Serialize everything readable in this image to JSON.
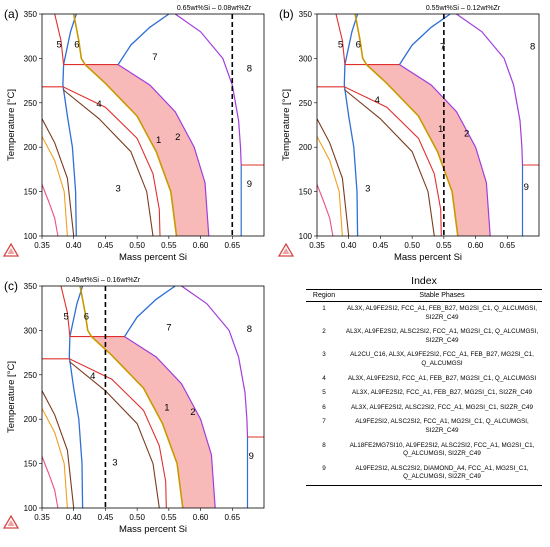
{
  "chart_data": [
    {
      "type": "line",
      "panel": "(a)",
      "annotation": "0.65wt%Si – 0.08wt%Zr",
      "xlabel": "Mass percent Si",
      "ylabel": "Temperature [°C]",
      "xlim": [
        0.35,
        0.7
      ],
      "ylim": [
        100,
        350
      ],
      "xticks": [
        "0.35",
        "0.40",
        "0.45",
        "0.50",
        "0.55",
        "0.60",
        "0.65"
      ],
      "yticks": [
        "100",
        "150",
        "200",
        "250",
        "300",
        "350"
      ],
      "marker_x": 0.65,
      "highlight_region": "2",
      "region_labels": [
        "1",
        "2",
        "3",
        "4",
        "5",
        "6",
        "7",
        "8",
        "9"
      ]
    },
    {
      "type": "line",
      "panel": "(b)",
      "annotation": "0.55wt%Si – 0.12wt%Zr",
      "xlabel": "Mass percent Si",
      "ylabel": "Temperature [°C]",
      "xlim": [
        0.35,
        0.7
      ],
      "ylim": [
        100,
        350
      ],
      "xticks": [
        "0.35",
        "0.40",
        "0.45",
        "0.50",
        "0.55",
        "0.60",
        "0.65"
      ],
      "yticks": [
        "100",
        "150",
        "200",
        "250",
        "300",
        "350"
      ],
      "marker_x": 0.55,
      "highlight_region": "2",
      "region_labels": [
        "1",
        "2",
        "3",
        "4",
        "5",
        "6",
        "7",
        "8",
        "9"
      ]
    },
    {
      "type": "line",
      "panel": "(c)",
      "annotation": "0.45wt%Si – 0.16wt%Zr",
      "xlabel": "Mass percent Si",
      "ylabel": "Temperature [°C]",
      "xlim": [
        0.35,
        0.7
      ],
      "ylim": [
        100,
        350
      ],
      "xticks": [
        "0.35",
        "0.40",
        "0.45",
        "0.50",
        "0.55",
        "0.60",
        "0.65"
      ],
      "yticks": [
        "100",
        "150",
        "200",
        "250",
        "300",
        "350"
      ],
      "marker_x": 0.45,
      "highlight_region": "2",
      "region_labels": [
        "1",
        "2",
        "3",
        "4",
        "5",
        "6",
        "7",
        "8",
        "9"
      ]
    }
  ],
  "colors": {
    "highlight_fill": "#f8b9b9",
    "red": "#e0302e",
    "blue": "#2f6fd6",
    "purple": "#a23cdc",
    "gold": "#c99a00",
    "brown": "#7a3b1e",
    "pink": "#e8508a",
    "orange": "#f0a020",
    "logo": "#d64545"
  },
  "index": {
    "title": "Index",
    "col_region": "Region",
    "col_phases": "Stable Phases",
    "rows": [
      {
        "region": "1",
        "phases": "AL3X, AL9FE2SI2, FCC_A1, FEB_B27, MG2SI_C1, Q_ALCUMGSI, SI2ZR_C49"
      },
      {
        "region": "2",
        "phases": "AL3X, AL9FE2SI2, ALSC2SI2, FCC_A1, MG2SI_C1, Q_ALCUMGSI, SI2ZR_C49"
      },
      {
        "region": "3",
        "phases": "AL2CU_C16, AL3X, AL9FE2SI2, FCC_A1, FEB_B27, MG2SI_C1, Q_ALCUMGSI"
      },
      {
        "region": "4",
        "phases": "AL3X, AL9FE2SI2, FCC_A1, FEB_B27, MG2SI_C1, Q_ALCUMGSI"
      },
      {
        "region": "5",
        "phases": "AL3X, AL9FE2SI2, FCC_A1, FEB_B27, MG2SI_C1, SI2ZR_C49"
      },
      {
        "region": "6",
        "phases": "AL3X, AL9FE2SI2, ALSC2SI2, FCC_A1, MG2SI_C1, SI2ZR_C49"
      },
      {
        "region": "7",
        "phases": "AL9FE2SI2, ALSC2SI2, FCC_A1, MG2SI_C1, Q_ALCUMGSI, SI2ZR_C49"
      },
      {
        "region": "8",
        "phases": "AL18FE2MG7SI10, AL9FE2SI2, ALSC2SI2, FCC_A1, MG2SI_C1, Q_ALCUMGSI, SI2ZR_C49"
      },
      {
        "region": "9",
        "phases": "AL9FE2SI2, ALSC2SI2, DIAMOND_A4, FCC_A1, MG2SI_C1, Q_ALCUMGSI, SI2ZR_C49"
      }
    ]
  }
}
